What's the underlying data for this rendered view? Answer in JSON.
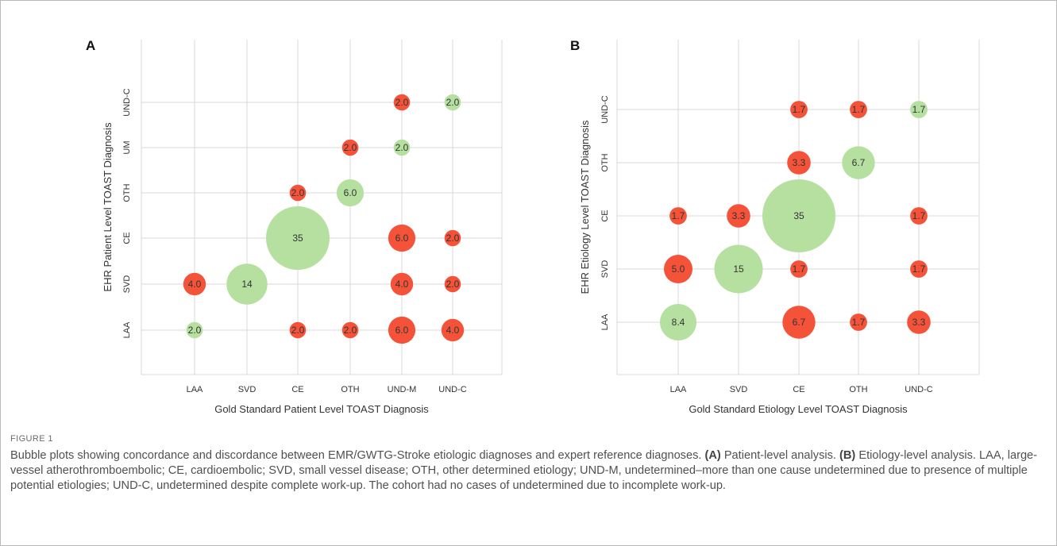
{
  "colors": {
    "concordant": "#b5e0a0",
    "discordant": "#f5523a",
    "grid": "#d9d9d9",
    "axis_text": "#333333"
  },
  "chart_data": [
    {
      "panel_label": "A",
      "type": "scatter",
      "xlabel": "Gold Standard Patient Level TOAST Diagnosis",
      "ylabel": "EHR Patient Level TOAST Diagnosis",
      "x_categories": [
        "LAA",
        "SVD",
        "CE",
        "OTH",
        "UND-M",
        "UND-C"
      ],
      "y_categories": [
        "LAA",
        "SVD",
        "CE",
        "OTH",
        "UM",
        "UND-C"
      ],
      "grid": true,
      "points": [
        {
          "x": "LAA",
          "y": "LAA",
          "value": "2.0",
          "concordant": true
        },
        {
          "x": "CE",
          "y": "LAA",
          "value": "2.0",
          "concordant": false
        },
        {
          "x": "OTH",
          "y": "LAA",
          "value": "2.0",
          "concordant": false
        },
        {
          "x": "UND-M",
          "y": "LAA",
          "value": "6.0",
          "concordant": false
        },
        {
          "x": "UND-C",
          "y": "LAA",
          "value": "4.0",
          "concordant": false
        },
        {
          "x": "LAA",
          "y": "SVD",
          "value": "4.0",
          "concordant": false
        },
        {
          "x": "SVD",
          "y": "SVD",
          "value": "14",
          "concordant": true
        },
        {
          "x": "UND-M",
          "y": "SVD",
          "value": "4.0",
          "concordant": false
        },
        {
          "x": "UND-C",
          "y": "SVD",
          "value": "2.0",
          "concordant": false
        },
        {
          "x": "CE",
          "y": "CE",
          "value": "35",
          "concordant": true
        },
        {
          "x": "UND-M",
          "y": "CE",
          "value": "6.0",
          "concordant": false
        },
        {
          "x": "UND-C",
          "y": "CE",
          "value": "2.0",
          "concordant": false
        },
        {
          "x": "CE",
          "y": "OTH",
          "value": "2.0",
          "concordant": false
        },
        {
          "x": "OTH",
          "y": "OTH",
          "value": "6.0",
          "concordant": true
        },
        {
          "x": "OTH",
          "y": "UM",
          "value": "2.0",
          "concordant": false
        },
        {
          "x": "UND-M",
          "y": "UM",
          "value": "2.0",
          "concordant": true
        },
        {
          "x": "UND-M",
          "y": "UND-C",
          "value": "2.0",
          "concordant": false
        },
        {
          "x": "UND-C",
          "y": "UND-C",
          "value": "2.0",
          "concordant": true
        }
      ]
    },
    {
      "panel_label": "B",
      "type": "scatter",
      "xlabel": "Gold Standard Etiology Level TOAST Diagnosis",
      "ylabel": "EHR Etiology Level TOAST Diagnosis",
      "x_categories": [
        "LAA",
        "SVD",
        "CE",
        "OTH",
        "UND-C"
      ],
      "y_categories": [
        "LAA",
        "SVD",
        "CE",
        "OTH",
        "UND-C"
      ],
      "grid": true,
      "points": [
        {
          "x": "LAA",
          "y": "LAA",
          "value": "8.4",
          "concordant": true
        },
        {
          "x": "CE",
          "y": "LAA",
          "value": "6.7",
          "concordant": false
        },
        {
          "x": "OTH",
          "y": "LAA",
          "value": "1.7",
          "concordant": false
        },
        {
          "x": "UND-C",
          "y": "LAA",
          "value": "3.3",
          "concordant": false
        },
        {
          "x": "LAA",
          "y": "SVD",
          "value": "5.0",
          "concordant": false
        },
        {
          "x": "SVD",
          "y": "SVD",
          "value": "15",
          "concordant": true
        },
        {
          "x": "CE",
          "y": "SVD",
          "value": "1.7",
          "concordant": false
        },
        {
          "x": "UND-C",
          "y": "SVD",
          "value": "1.7",
          "concordant": false
        },
        {
          "x": "LAA",
          "y": "CE",
          "value": "1.7",
          "concordant": false
        },
        {
          "x": "SVD",
          "y": "CE",
          "value": "3.3",
          "concordant": false
        },
        {
          "x": "CE",
          "y": "CE",
          "value": "35",
          "concordant": true
        },
        {
          "x": "UND-C",
          "y": "CE",
          "value": "1.7",
          "concordant": false
        },
        {
          "x": "CE",
          "y": "OTH",
          "value": "3.3",
          "concordant": false
        },
        {
          "x": "OTH",
          "y": "OTH",
          "value": "6.7",
          "concordant": true
        },
        {
          "x": "CE",
          "y": "UND-C",
          "value": "1.7",
          "concordant": false
        },
        {
          "x": "OTH",
          "y": "UND-C",
          "value": "1.7",
          "concordant": false
        },
        {
          "x": "UND-C",
          "y": "UND-C",
          "value": "1.7",
          "concordant": true
        }
      ]
    }
  ],
  "caption": {
    "label": "FIGURE 1",
    "text_intro": "Bubble plots showing concordance and discordance between EMR/GWTG-Stroke etiologic diagnoses and expert reference diagnoses. ",
    "a_tag": "(A)",
    "a_text": " Patient-level analysis. ",
    "b_tag": "(B)",
    "b_text": " Etiology-level analysis. LAA, large-vessel atherothromboembolic; CE, cardioembolic; SVD, small vessel disease; OTH, other determined etiology; UND-M, undetermined–more than one cause undetermined due to presence of multiple potential etiologies; UND-C, undetermined despite complete work-up. The cohort had no cases of undetermined due to incomplete work-up."
  }
}
